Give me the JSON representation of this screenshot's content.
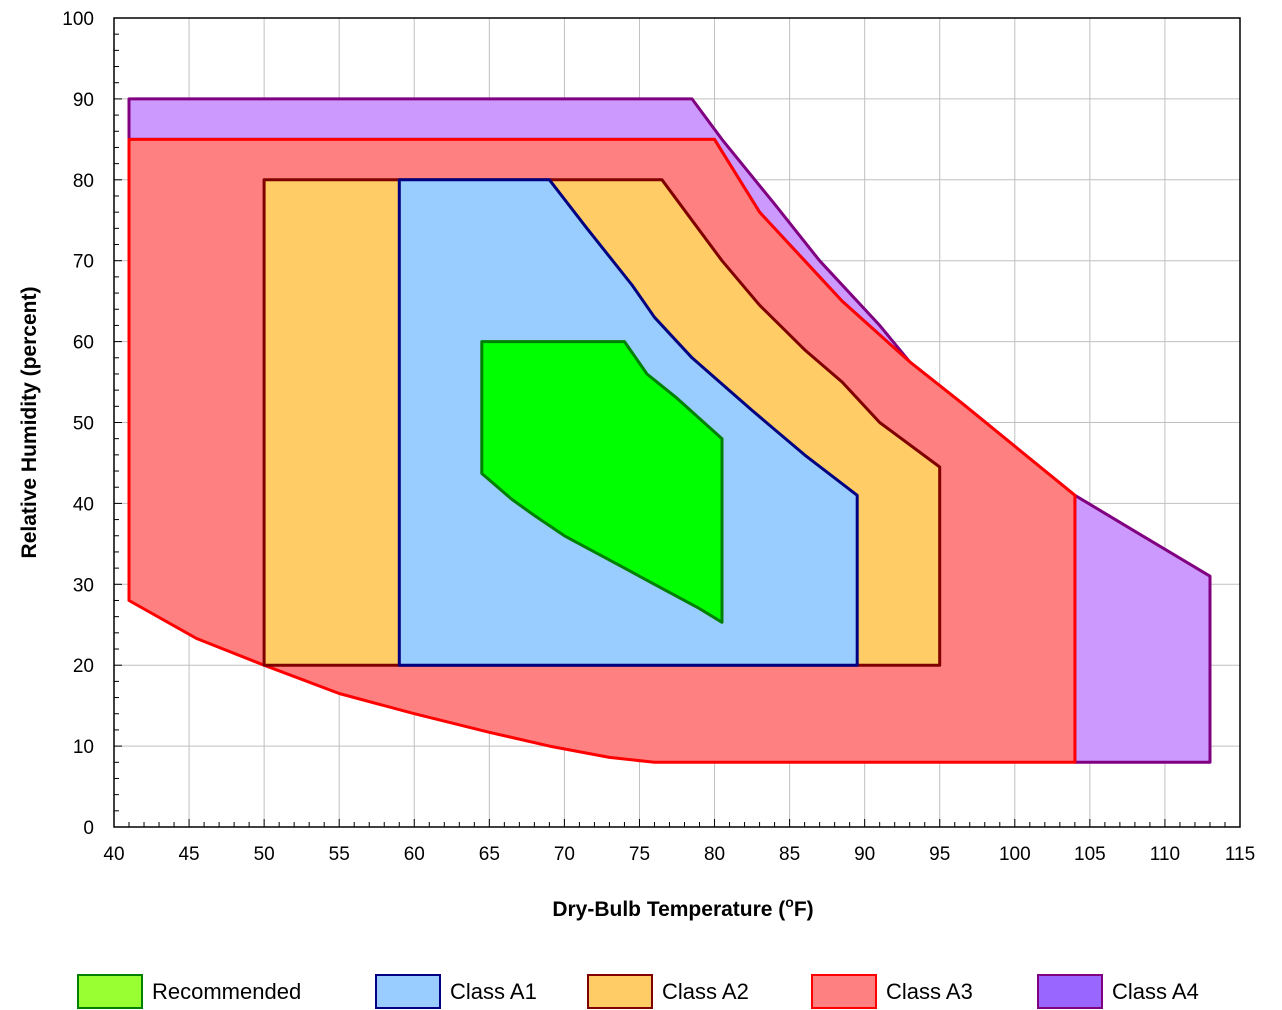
{
  "chart_data": {
    "type": "area",
    "xlabel": "Dry-Bulb Temperature (",
    "xlabel_sup": "o",
    "xlabel_end": "F)",
    "ylabel": "Relative Humidity (percent)",
    "xlim": [
      40,
      115
    ],
    "ylim": [
      0,
      100
    ],
    "x_ticks": [
      40,
      45,
      50,
      55,
      60,
      65,
      70,
      75,
      80,
      85,
      90,
      95,
      100,
      105,
      110,
      115
    ],
    "y_ticks": [
      0,
      10,
      20,
      30,
      40,
      50,
      60,
      70,
      80,
      90,
      100
    ],
    "grid": true,
    "legend_position": "bottom",
    "series": [
      {
        "name": "Class A4",
        "fill": "#cc99ff",
        "stroke": "#800080",
        "points": [
          [
            41,
            90
          ],
          [
            78.5,
            90
          ],
          [
            80.5,
            85
          ],
          [
            84,
            77
          ],
          [
            87,
            70
          ],
          [
            91,
            62
          ],
          [
            95,
            53
          ],
          [
            100,
            46
          ],
          [
            104,
            41
          ],
          [
            108.5,
            36
          ],
          [
            113,
            31
          ],
          [
            113,
            8
          ],
          [
            104,
            8
          ],
          [
            104,
            41
          ],
          [
            96.6,
            52.2
          ],
          [
            93,
            57.5
          ],
          [
            88.5,
            65
          ],
          [
            86,
            70
          ],
          [
            83,
            76
          ],
          [
            80,
            85
          ],
          [
            41,
            85
          ]
        ],
        "legend_fill": "#9966ff"
      },
      {
        "name": "Class A3",
        "fill": "#ff8080",
        "stroke": "#ff0000",
        "points": [
          [
            41,
            85
          ],
          [
            80,
            85
          ],
          [
            83,
            76
          ],
          [
            86,
            70
          ],
          [
            88.5,
            65
          ],
          [
            93,
            57.5
          ],
          [
            96.6,
            52.2
          ],
          [
            104,
            41
          ],
          [
            104,
            8
          ],
          [
            76,
            8
          ],
          [
            73,
            8.6
          ],
          [
            69,
            10
          ],
          [
            65,
            11.7
          ],
          [
            60,
            14
          ],
          [
            55,
            16.5
          ],
          [
            50,
            20
          ],
          [
            45.5,
            23.3
          ],
          [
            41,
            28
          ]
        ]
      },
      {
        "name": "Class A2",
        "fill": "#ffcc66",
        "stroke": "#800000",
        "points": [
          [
            50,
            80
          ],
          [
            76.5,
            80
          ],
          [
            78.5,
            75
          ],
          [
            80.5,
            70
          ],
          [
            83,
            64.5
          ],
          [
            86,
            59
          ],
          [
            88.5,
            55
          ],
          [
            91,
            50
          ],
          [
            95,
            44.5
          ],
          [
            95,
            20
          ],
          [
            50,
            20
          ]
        ]
      },
      {
        "name": "Class A1",
        "fill": "#99ccff",
        "stroke": "#000080",
        "points": [
          [
            59,
            80
          ],
          [
            69,
            80
          ],
          [
            71.5,
            74
          ],
          [
            74.5,
            67
          ],
          [
            76,
            63
          ],
          [
            78.5,
            58
          ],
          [
            82.5,
            51.5
          ],
          [
            86,
            46
          ],
          [
            89.5,
            41
          ],
          [
            89.5,
            20
          ],
          [
            59,
            20
          ]
        ]
      },
      {
        "name": "Recommended",
        "fill": "#00ff00",
        "stroke": "#008000",
        "points": [
          [
            64.5,
            60
          ],
          [
            74,
            60
          ],
          [
            75.5,
            56
          ],
          [
            77.5,
            53
          ],
          [
            79,
            50.5
          ],
          [
            80.5,
            48
          ],
          [
            80.5,
            25.3
          ],
          [
            79,
            27
          ],
          [
            77,
            29
          ],
          [
            75.5,
            30.5
          ],
          [
            74,
            32
          ],
          [
            72,
            34
          ],
          [
            70,
            36
          ],
          [
            68,
            38.5
          ],
          [
            66.5,
            40.5
          ],
          [
            64.5,
            43.7
          ]
        ],
        "legend_fill": "#99ff33"
      }
    ],
    "legend_order": [
      "Recommended",
      "Class A1",
      "Class A2",
      "Class A3",
      "Class A4"
    ]
  }
}
